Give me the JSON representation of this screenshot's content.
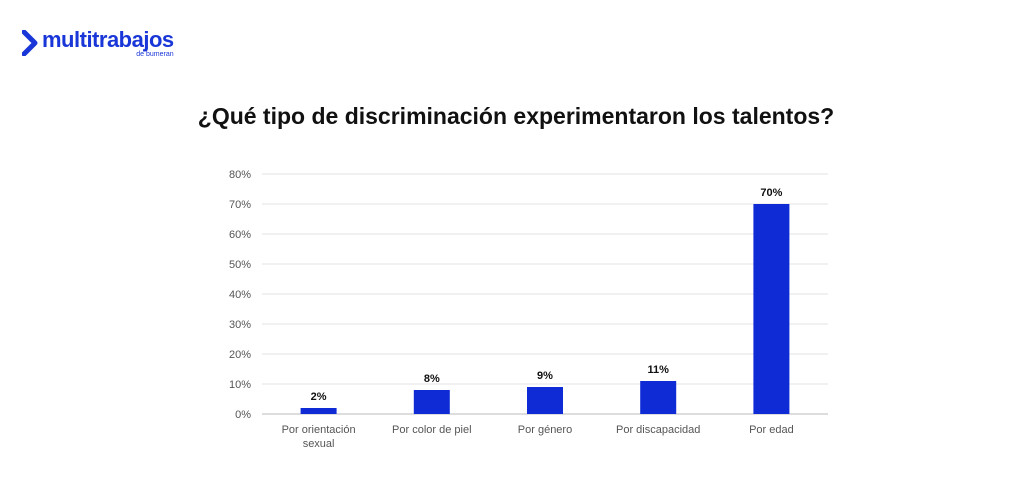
{
  "logo": {
    "word": "multitrabajos",
    "sub": "de bumeran",
    "color": "#1936d8"
  },
  "chart_data": {
    "type": "bar",
    "title": "¿Qué tipo de discriminación experimentaron los talentos?",
    "categories": [
      [
        "Por orientación",
        "sexual"
      ],
      [
        "Por color de piel"
      ],
      [
        "Por género"
      ],
      [
        "Por discapacidad"
      ],
      [
        "Por edad"
      ]
    ],
    "values": [
      2,
      8,
      9,
      11,
      70
    ],
    "data_labels": [
      "2%",
      "8%",
      "9%",
      "11%",
      "70%"
    ],
    "ylim": [
      0,
      80
    ],
    "yticks": [
      0,
      10,
      20,
      30,
      40,
      50,
      60,
      70,
      80
    ],
    "ytick_labels": [
      "0%",
      "10%",
      "20%",
      "30%",
      "40%",
      "50%",
      "60%",
      "70%",
      "80%"
    ],
    "xlabel": "",
    "ylabel": "",
    "grid": true,
    "legend": "none",
    "bar_color": "#0f2bd6"
  }
}
